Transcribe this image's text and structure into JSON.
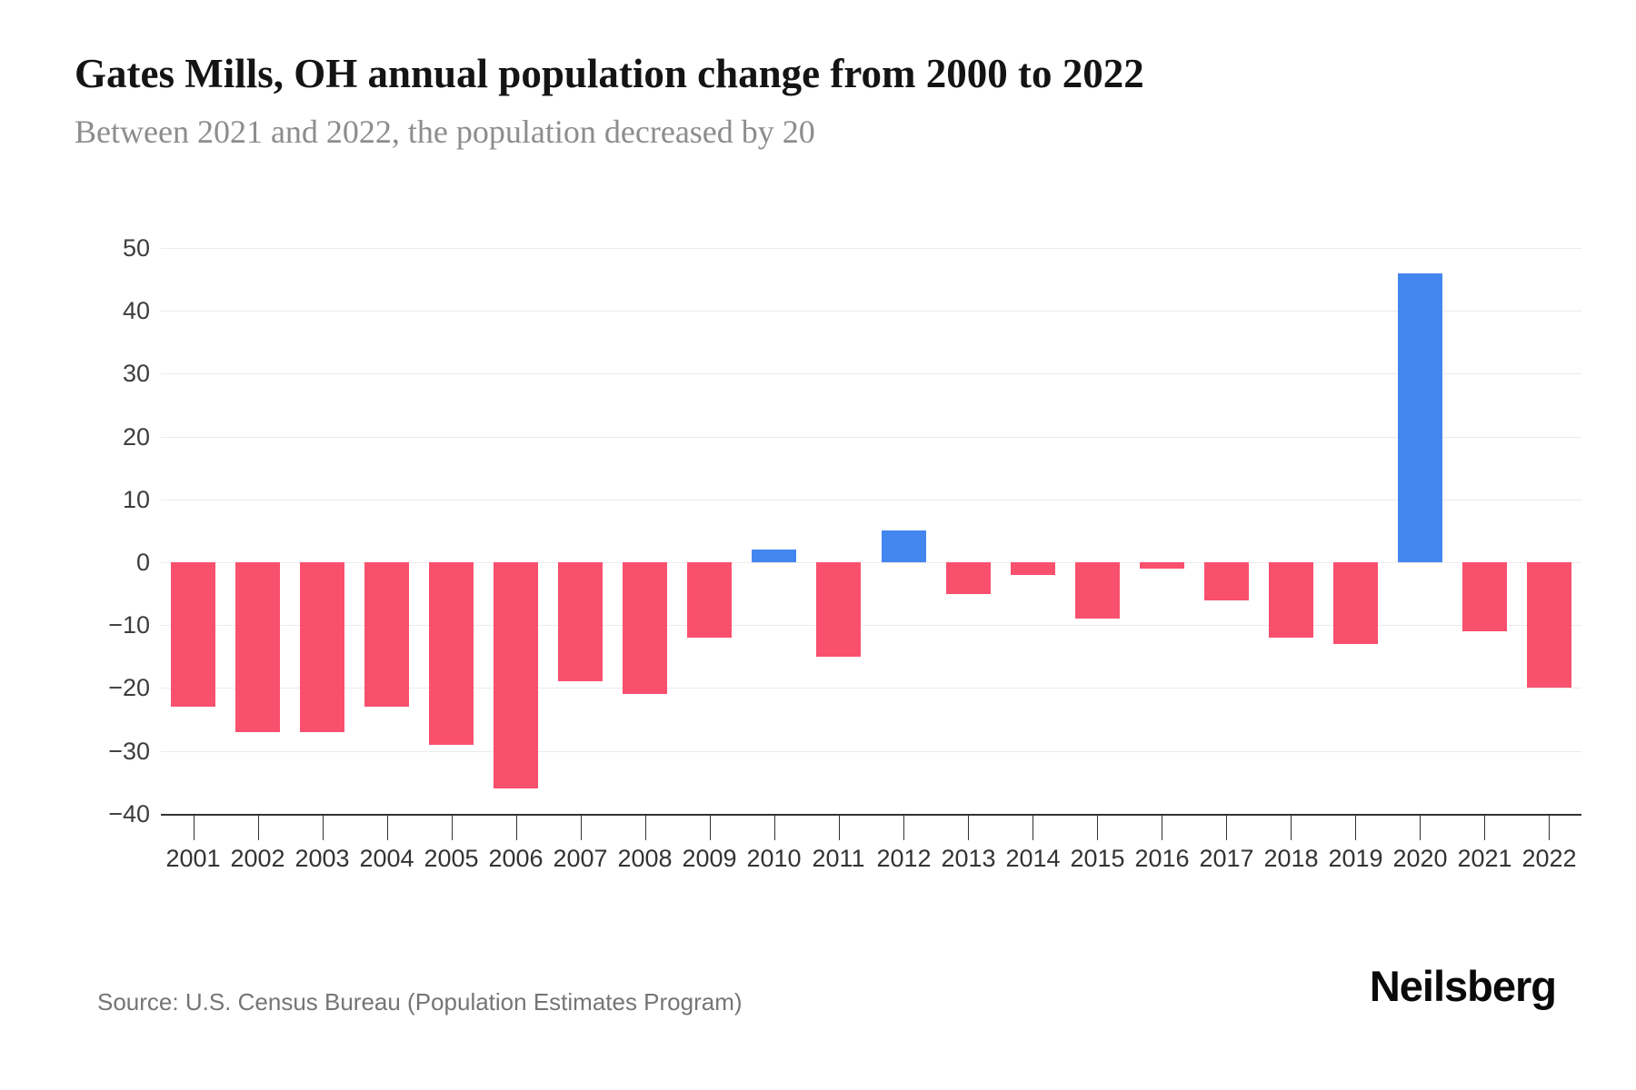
{
  "header": {
    "title": "Gates Mills, OH annual population change from 2000 to 2022",
    "subtitle": "Between 2021 and 2022, the population decreased by 20"
  },
  "footer": {
    "source": "Source: U.S. Census Bureau (Population Estimates Program)",
    "logo": "Neilsberg"
  },
  "colors": {
    "positive_bar": "#4486f0",
    "negative_bar": "#f9506e",
    "gridline": "#ebebeb",
    "axis": "#333333",
    "title_text": "#141414",
    "subtitle_text": "#8d8d8d",
    "tick_label": "#3d3d3d",
    "source_text": "#757575"
  },
  "chart_data": {
    "type": "bar",
    "title": "Gates Mills, OH annual population change from 2000 to 2022",
    "subtitle": "Between 2021 and 2022, the population decreased by 20",
    "xlabel": "",
    "ylabel": "",
    "categories": [
      "2001",
      "2002",
      "2003",
      "2004",
      "2005",
      "2006",
      "2007",
      "2008",
      "2009",
      "2010",
      "2011",
      "2012",
      "2013",
      "2014",
      "2015",
      "2016",
      "2017",
      "2018",
      "2019",
      "2020",
      "2021",
      "2022"
    ],
    "values": [
      -23,
      -27,
      -27,
      -23,
      -29,
      -36,
      -19,
      -21,
      -12,
      2,
      -15,
      5,
      -5,
      -2,
      -9,
      -1,
      -6,
      -12,
      -13,
      46,
      -11,
      -20
    ],
    "ylim": [
      -40,
      50
    ],
    "ytick_step": 10,
    "yticks": [
      50,
      40,
      30,
      20,
      10,
      0,
      -10,
      -20,
      -30,
      -40
    ],
    "grid": true,
    "legend": "none",
    "positive_color": "#4486f0",
    "negative_color": "#f9506e"
  }
}
